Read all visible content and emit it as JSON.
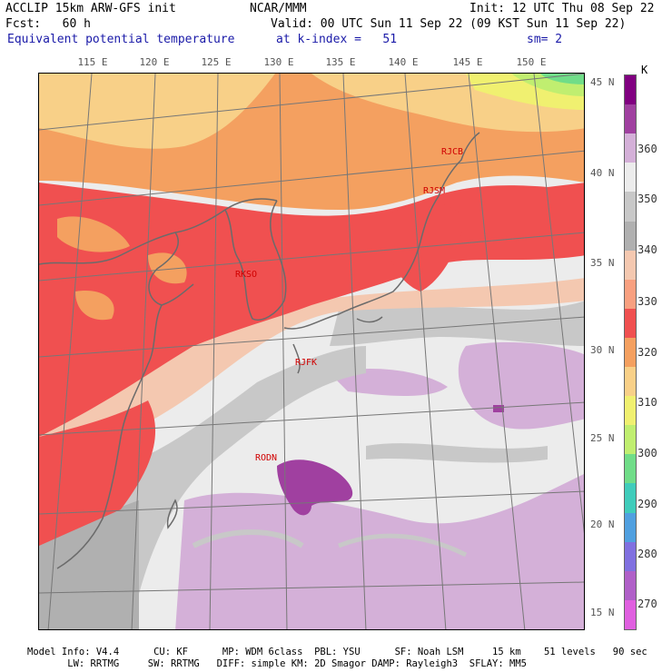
{
  "header": {
    "line1_left": "ACCLIP 15km ARW-GFS init",
    "line1_center": "NCAR/MMM",
    "line1_right": "Init: 12 UTC Thu 08 Sep 22",
    "line2_left": "Fcst:   60 h",
    "line2_right": "Valid: 00 UTC Sun 11 Sep 22 (09 KST Sun 11 Sep 22)",
    "line3_left": "Equivalent potential temperature",
    "line3_center": "at k-index =   51",
    "line3_right": "sm= 2"
  },
  "map": {
    "lon_labels": [
      "115 E",
      "120 E",
      "125 E",
      "130 E",
      "135 E",
      "140 E",
      "145 E",
      "150 E"
    ],
    "lat_labels": [
      "45 N",
      "40 N",
      "35 N",
      "30 N",
      "25 N",
      "20 N",
      "15 N"
    ],
    "stations": [
      "RJCB",
      "RJSM",
      "RKSO",
      "RJFK",
      "RODN"
    ]
  },
  "colorbar": {
    "unit": "K",
    "ticks": [
      "360",
      "350",
      "340",
      "330",
      "320",
      "310",
      "300",
      "290",
      "280",
      "270"
    ],
    "colors": [
      "#800080",
      "#a040a0",
      "#d4b0d8",
      "#ececec",
      "#c8c8c8",
      "#b0b0b0",
      "#f4c8b0",
      "#f8a080",
      "#f05050",
      "#f4a060",
      "#f8d088",
      "#f0f070",
      "#c0ee70",
      "#70dd88",
      "#40ccbb",
      "#50a0e0",
      "#8070e0",
      "#b060c8",
      "#e060e0"
    ]
  },
  "footer": {
    "line1": "Model Info: V4.4      CU: KF      MP: WDM 6class  PBL: YSU      SF: Noah LSM     15 km    51 levels   90 sec",
    "line2": "       LW: RRTMG     SW: RRTMG   DIFF: simple KM: 2D Smagor DAMP: Rayleigh3  SFLAY: MM5"
  }
}
